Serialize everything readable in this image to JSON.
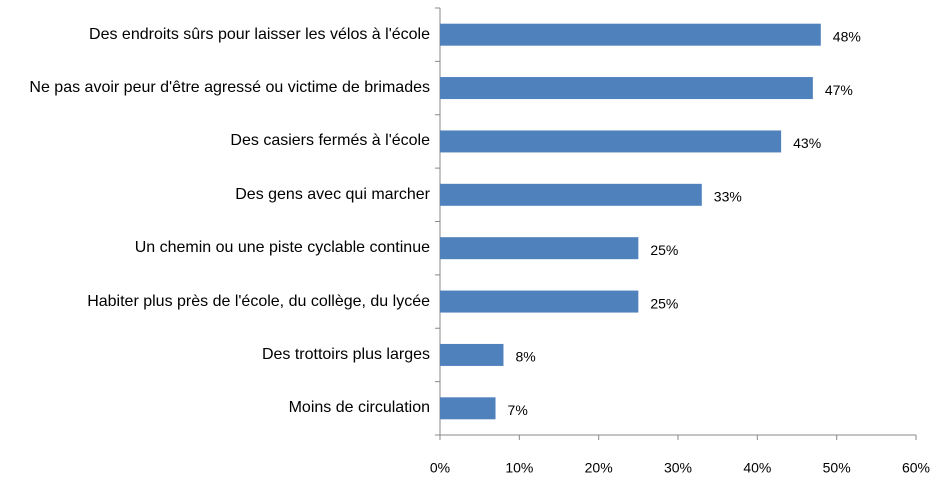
{
  "chart_data": {
    "type": "barh",
    "categories": [
      "Des endroits sûrs pour laisser les vélos à l'école",
      "Ne pas avoir peur d'être agressé ou victime de brimades",
      "Des casiers fermés à l'école",
      "Des gens avec qui marcher",
      "Un chemin ou une piste cyclable continue",
      "Habiter plus près de l'école, du collège, du lycée",
      "Des trottoirs plus larges",
      "Moins de circulation"
    ],
    "values": [
      48,
      47,
      43,
      33,
      25,
      25,
      8,
      7
    ],
    "value_labels": [
      "48%",
      "47%",
      "43%",
      "33%",
      "25%",
      "25%",
      "8%",
      "7%"
    ],
    "color": "#4f81bd",
    "xlim": [
      0,
      60
    ],
    "xticks": [
      {
        "value": 0,
        "label": "0%"
      },
      {
        "value": 10,
        "label": "10%"
      },
      {
        "value": 20,
        "label": "20%"
      },
      {
        "value": 30,
        "label": "30%"
      },
      {
        "value": 40,
        "label": "40%"
      },
      {
        "value": 50,
        "label": "50%"
      },
      {
        "value": 60,
        "label": "60%"
      }
    ]
  }
}
